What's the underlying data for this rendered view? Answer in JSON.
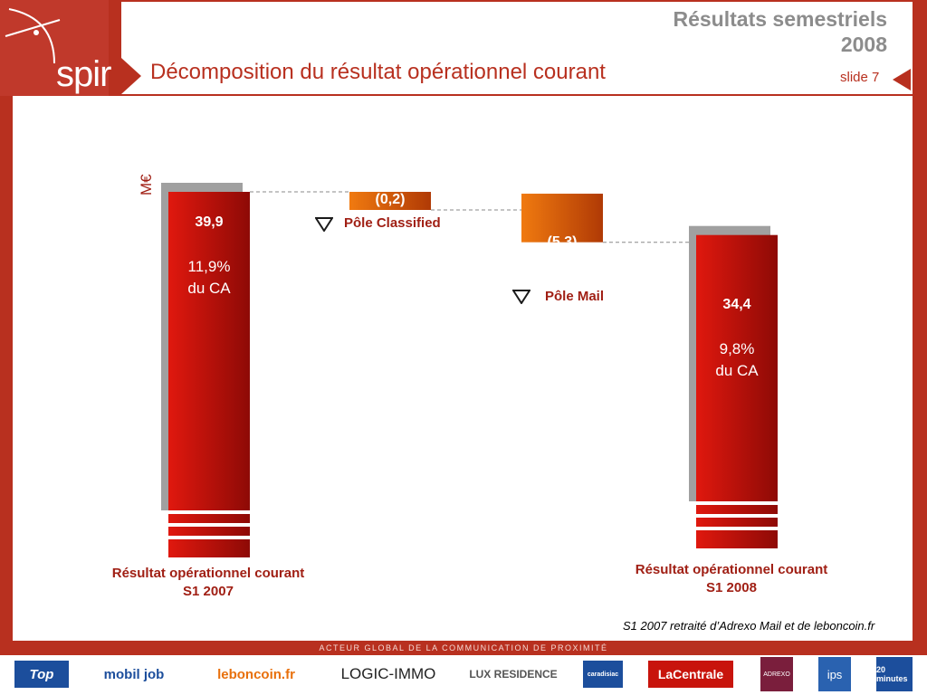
{
  "header": {
    "title_line1": "Résultats semestriels",
    "title_line2": "2008",
    "page_title": "Décomposition du résultat opérationnel courant",
    "slide": "slide 7",
    "logo": "spir"
  },
  "footer": {
    "tagline": "ACTEUR GLOBAL DE LA COMMUNICATION DE PROXIMITÉ",
    "brands": [
      "Top",
      "mobil job",
      "leboncoin.fr",
      "LOGIC-IMMO",
      "LUX RESIDENCE",
      "caradisiac",
      "LaCentrale",
      "ADREXO",
      "ips",
      "20 minutes"
    ]
  },
  "note": "S1 2007 retraité d’Adrexo Mail et de leboncoin.fr",
  "chart_data": {
    "type": "waterfall",
    "unit": "M€",
    "categories": [
      "Résultat opérationnel courant S1 2007",
      "Pôle Classified",
      "Pôle Mail",
      "Résultat opérationnel courant S1 2008"
    ],
    "values": [
      39.9,
      -0.2,
      -5.3,
      34.4
    ],
    "value_labels": [
      "39,9",
      "(0,2)",
      "(5,3)",
      "34,4"
    ],
    "pct_labels": [
      "11,9%",
      "du CA",
      "9,8%",
      "du CA"
    ],
    "start_label": [
      "Résultat opérationnel courant",
      "S1 2007"
    ],
    "end_label": [
      "Résultat opérationnel courant",
      "S1 2008"
    ],
    "colors": {
      "total": "#c8140c",
      "delta": "#e8700c",
      "shadow": "#a0a0a0"
    }
  }
}
